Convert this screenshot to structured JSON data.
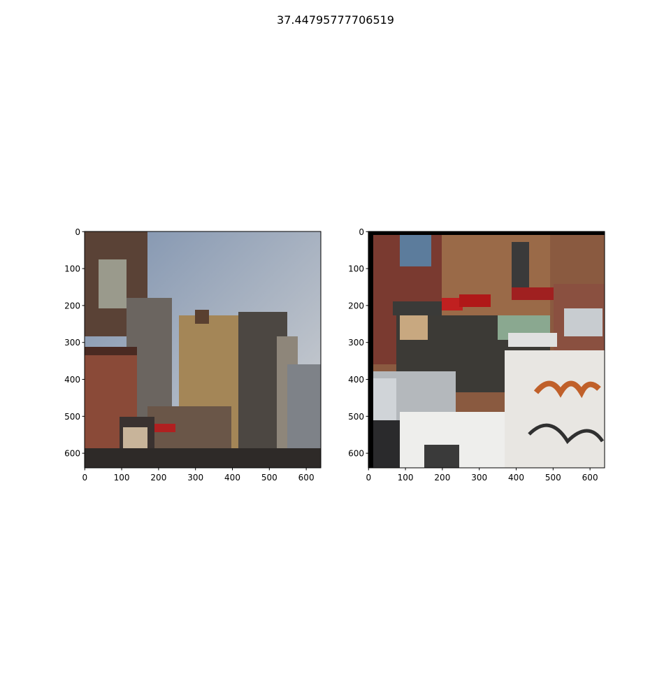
{
  "title": "37.44795777706519",
  "chart_data": [
    {
      "type": "image",
      "xlim": [
        -0.5,
        639.5
      ],
      "ylim": [
        639.5,
        -0.5
      ],
      "xticks": [
        0,
        100,
        200,
        300,
        400,
        500,
        600
      ],
      "yticks": [
        0,
        100,
        200,
        300,
        400,
        500,
        600
      ]
    },
    {
      "type": "image",
      "xlim": [
        -0.5,
        639.5
      ],
      "ylim": [
        639.5,
        -0.5
      ],
      "xticks": [
        0,
        100,
        200,
        300,
        400,
        500,
        600
      ],
      "yticks": [
        0,
        100,
        200,
        300,
        400,
        500,
        600
      ]
    }
  ]
}
